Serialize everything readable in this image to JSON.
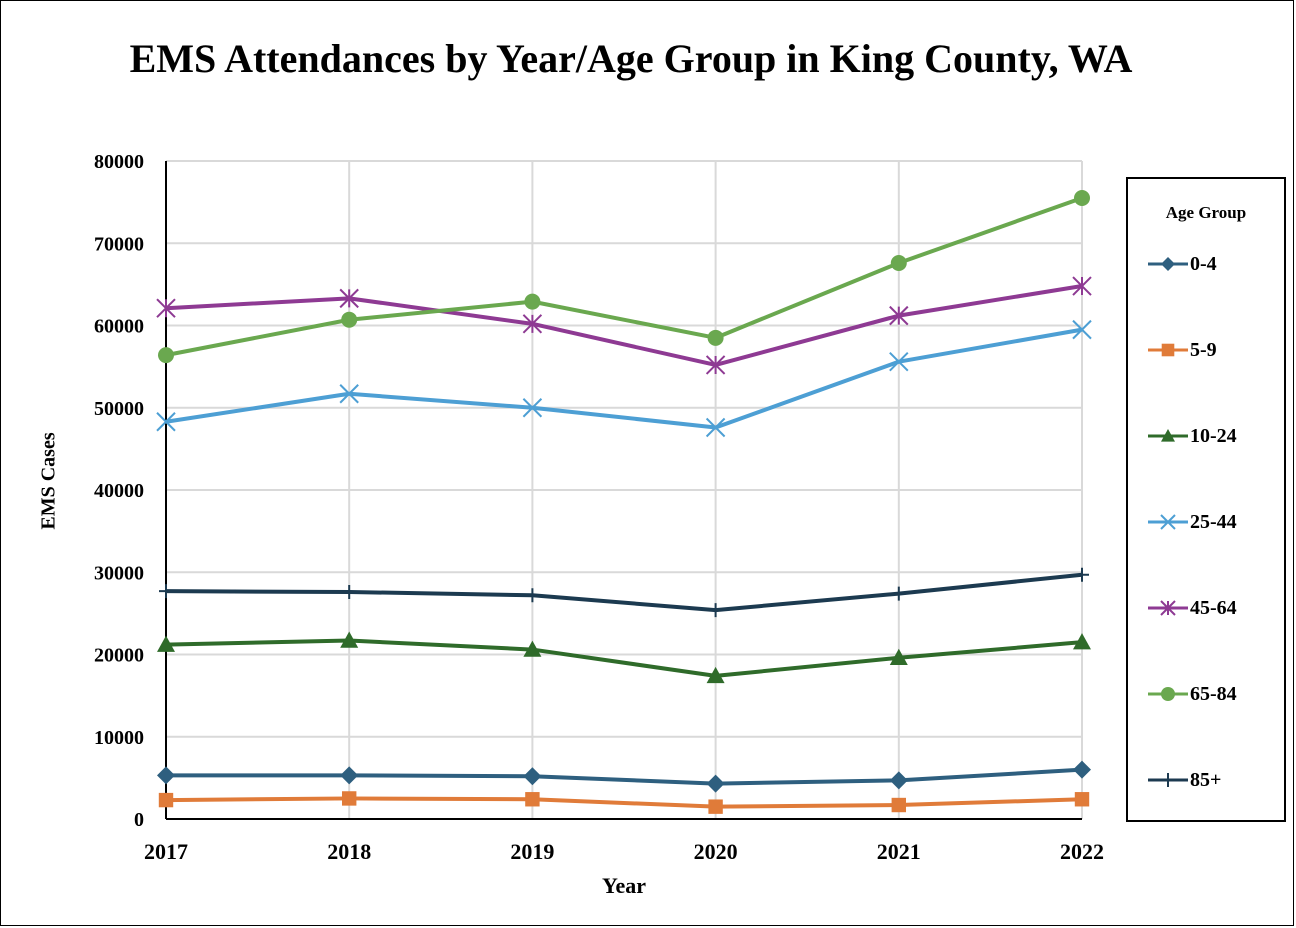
{
  "chart_data": {
    "type": "line",
    "title": "EMS Attendances by Year/Age Group in King County, WA",
    "xlabel": "Year",
    "ylabel": "EMS Cases",
    "categories": [
      "2017",
      "2018",
      "2019",
      "2020",
      "2021",
      "2022"
    ],
    "ylim": [
      0,
      80000
    ],
    "yticks": [
      "0",
      "10000",
      "20000",
      "30000",
      "40000",
      "50000",
      "60000",
      "70000",
      "80000"
    ],
    "grid": true,
    "legend_title": "Age Group",
    "legend_position": "right",
    "series": [
      {
        "name": "0-4",
        "color": "#2e5f7f",
        "marker": "diamond",
        "values": [
          5300,
          5300,
          5200,
          4300,
          4700,
          6000
        ]
      },
      {
        "name": "5-9",
        "color": "#e07b39",
        "marker": "square",
        "values": [
          2300,
          2500,
          2400,
          1500,
          1700,
          2400
        ]
      },
      {
        "name": "10-24",
        "color": "#2f6b2a",
        "marker": "triangle",
        "values": [
          21200,
          21700,
          20600,
          17400,
          19600,
          21500
        ]
      },
      {
        "name": "25-44",
        "color": "#4d9fd4",
        "marker": "x",
        "values": [
          48300,
          51700,
          50000,
          47600,
          55600,
          59500
        ]
      },
      {
        "name": "45-64",
        "color": "#8e3a93",
        "marker": "star",
        "values": [
          62100,
          63300,
          60200,
          55200,
          61200,
          64800
        ]
      },
      {
        "name": "65-84",
        "color": "#6aa84f",
        "marker": "circle",
        "values": [
          56400,
          60700,
          62900,
          58500,
          67600,
          75500
        ]
      },
      {
        "name": "85+",
        "color": "#1c3a50",
        "marker": "plus",
        "values": [
          27700,
          27600,
          27200,
          25400,
          27400,
          29700
        ]
      }
    ]
  }
}
